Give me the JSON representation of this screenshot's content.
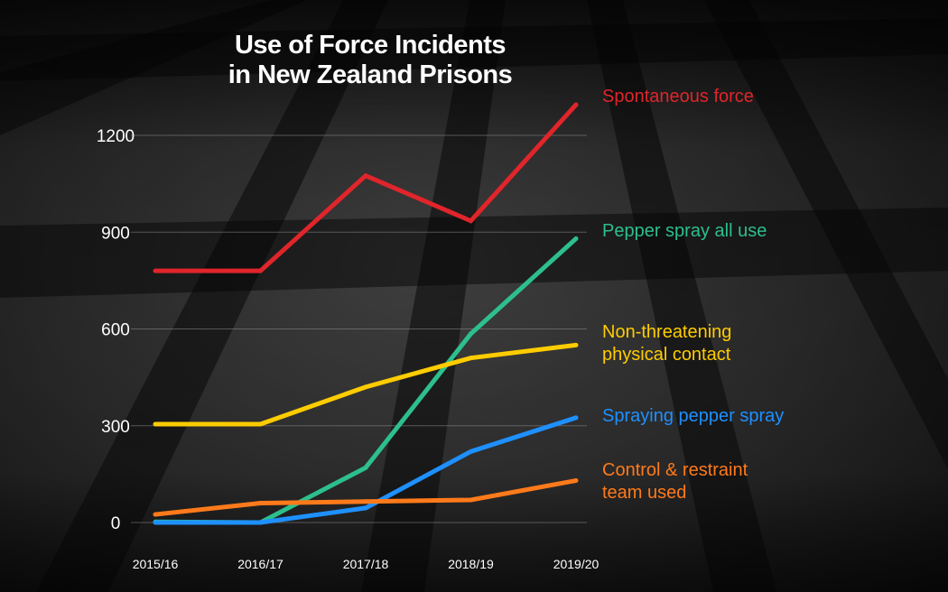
{
  "chart_data": {
    "type": "line",
    "title_lines": [
      "Use of Force Incidents",
      "in New Zealand Prisons"
    ],
    "categories": [
      "2015/16",
      "2016/17",
      "2017/18",
      "2018/19",
      "2019/20"
    ],
    "ylim": [
      0,
      1400
    ],
    "yticks": [
      0,
      300,
      600,
      900,
      1200
    ],
    "yticklabels": [
      "0",
      "300",
      "600",
      "900",
      "1200"
    ],
    "grid": true,
    "series": [
      {
        "name_lines": [
          "Spontaneous force"
        ],
        "color": "#e0252b",
        "values": [
          780,
          780,
          1075,
          935,
          1295
        ]
      },
      {
        "name_lines": [
          "Pepper spray all use"
        ],
        "color": "#2dbf8c",
        "values": [
          2,
          0,
          170,
          585,
          880
        ]
      },
      {
        "name_lines": [
          "Non-threatening",
          "physical contact"
        ],
        "color": "#ffcc00",
        "values": [
          305,
          305,
          420,
          510,
          550
        ]
      },
      {
        "name_lines": [
          "Spraying pepper spray"
        ],
        "color": "#1e90ff",
        "values": [
          0,
          0,
          45,
          220,
          325
        ]
      },
      {
        "name_lines": [
          "Control & restraint",
          "team used"
        ],
        "color": "#ff7a1a",
        "values": [
          25,
          60,
          65,
          70,
          130
        ]
      }
    ]
  }
}
